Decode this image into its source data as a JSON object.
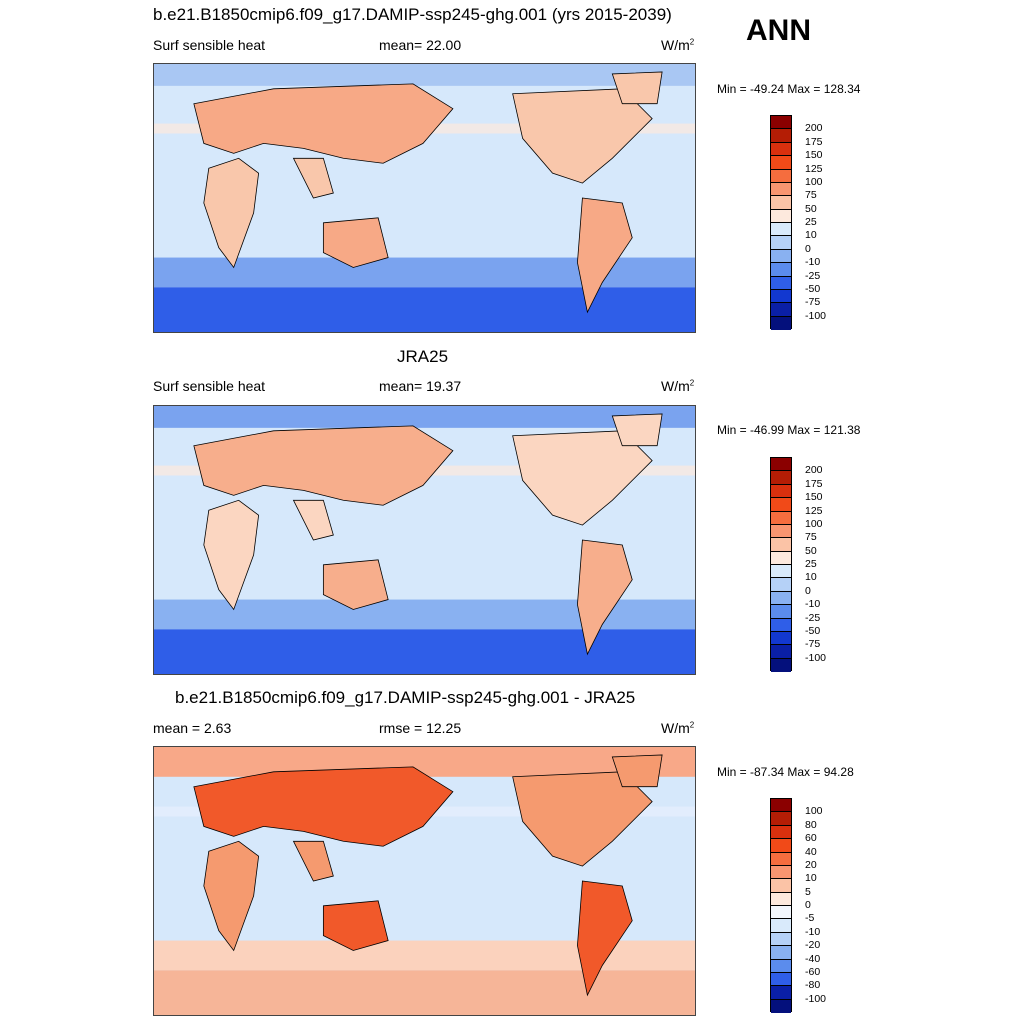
{
  "chart_data": [
    {
      "type": "heatmap",
      "title": "b.e21.B1850cmip6.f09_g17.DAMIP-ssp245-ghg.001 (yrs 2015-2039)",
      "variable": "Surf sensible heat",
      "stat_label": "mean=  22.00",
      "mean": 22.0,
      "units": "W/m",
      "units_sup": "2",
      "min": -49.24,
      "max": 128.34,
      "minmax_label": "Min = -49.24 Max = 128.34",
      "colorbar_levels": [
        "200",
        "175",
        "150",
        "125",
        "100",
        "75",
        "50",
        "25",
        "10",
        "0",
        "-10",
        "-25",
        "-50",
        "-75",
        "-100"
      ],
      "colorbar_colors": [
        "#8b0000",
        "#b41d05",
        "#d9300e",
        "#f14a18",
        "#f56d3e",
        "#f89570",
        "#fbc3a6",
        "#fde9dd",
        "#d9eafb",
        "#b5d1f7",
        "#89b1f1",
        "#5b8ced",
        "#2f5ee8",
        "#1238d0",
        "#0a1fa6",
        "#04107c"
      ]
    },
    {
      "type": "heatmap",
      "title": "JRA25",
      "variable": "Surf sensible heat",
      "stat_label": "mean=  19.37",
      "mean": 19.37,
      "units": "W/m",
      "units_sup": "2",
      "min": -46.99,
      "max": 121.38,
      "minmax_label": "Min = -46.99 Max = 121.38",
      "colorbar_levels": [
        "200",
        "175",
        "150",
        "125",
        "100",
        "75",
        "50",
        "25",
        "10",
        "0",
        "-10",
        "-25",
        "-50",
        "-75",
        "-100"
      ],
      "colorbar_colors": [
        "#8b0000",
        "#b41d05",
        "#d9300e",
        "#f14a18",
        "#f56d3e",
        "#f89570",
        "#fbc3a6",
        "#fde9dd",
        "#d9eafb",
        "#b5d1f7",
        "#89b1f1",
        "#5b8ced",
        "#2f5ee8",
        "#1238d0",
        "#0a1fa6",
        "#04107c"
      ]
    },
    {
      "type": "heatmap",
      "title": "b.e21.B1850cmip6.f09_g17.DAMIP-ssp245-ghg.001 - JRA25",
      "stat_label": "mean =   2.63",
      "mean": 2.63,
      "rmse_label": "rmse =  12.25",
      "rmse": 12.25,
      "units": "W/m",
      "units_sup": "2",
      "min": -87.34,
      "max": 94.28,
      "minmax_label": "Min = -87.34 Max =  94.28",
      "colorbar_levels": [
        "100",
        "80",
        "60",
        "40",
        "20",
        "10",
        "5",
        "0",
        "-5",
        "-10",
        "-20",
        "-40",
        "-60",
        "-80",
        "-100"
      ],
      "colorbar_colors": [
        "#8b0000",
        "#b41d05",
        "#d9300e",
        "#f14a18",
        "#f56d3e",
        "#f89570",
        "#fbc3a6",
        "#fde9dd",
        "#f3f7fd",
        "#d9eafb",
        "#b5d1f7",
        "#89b1f1",
        "#5b8ced",
        "#2f5ee8",
        "#0a1fa6",
        "#04107c"
      ]
    }
  ],
  "season_label": "ANN"
}
